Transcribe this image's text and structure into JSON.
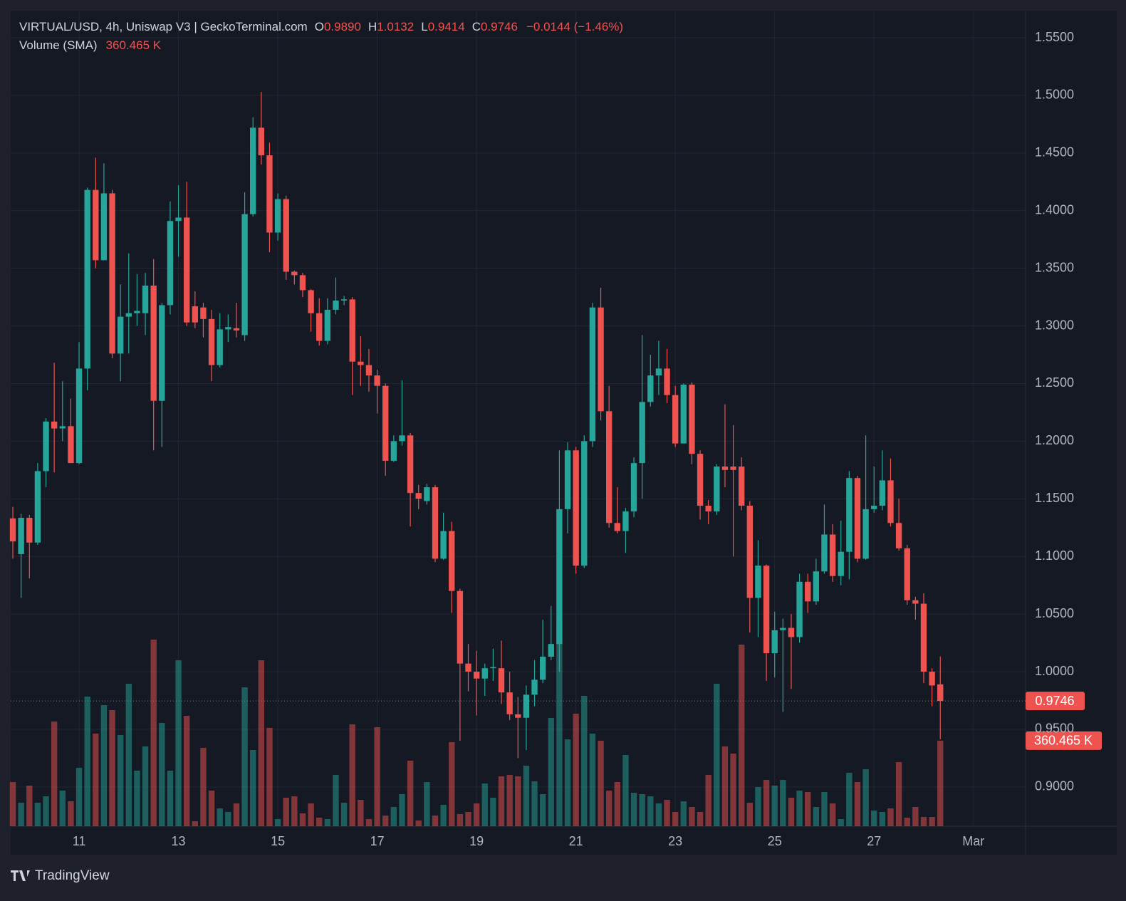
{
  "chart_data": {
    "type": "candlestick",
    "title": "VIRTUAL/USD, 4h, Uniswap V3 | GeckoTerminal.com",
    "ohlc_letters": [
      "O",
      "H",
      "L",
      "C"
    ],
    "ohlc_labels": [
      "0.9890",
      "1.0132",
      "0.9414",
      "0.9746"
    ],
    "change_label": "−0.0144 (−1.46%)",
    "volume_title": "Volume (SMA)",
    "volume_label": "360.465 K",
    "watermark": "TradingView",
    "up_color": "#26a69a",
    "down_color": "#ef5350",
    "open": [
      1.133,
      1.102,
      1.1335,
      1.112,
      1.174,
      1.217,
      1.211,
      1.213,
      1.181,
      1.263,
      1.418,
      1.357,
      1.415,
      1.276,
      1.308,
      1.311,
      1.311,
      1.335,
      1.235,
      1.318,
      1.391,
      1.394,
      1.317,
      1.316,
      1.306,
      1.266,
      1.297,
      1.298,
      1.292,
      1.397,
      1.472,
      1.448,
      1.381,
      1.41,
      1.347,
      1.344,
      1.331,
      1.311,
      1.287,
      1.314,
      1.322,
      1.323,
      1.269,
      1.266,
      1.257,
      1.248,
      1.183,
      1.2,
      1.205,
      1.155,
      1.148,
      1.16,
      1.098,
      1.122,
      1.07,
      1.007,
      1.0,
      0.994,
      1.003,
      1.003,
      0.982,
      0.963,
      0.96,
      0.98,
      0.993,
      1.013,
      1.024,
      1.141,
      1.192,
      1.092,
      1.2,
      1.316,
      1.226,
      1.129,
      1.122,
      1.139,
      1.181,
      1.234,
      1.257,
      1.263,
      1.24,
      1.198,
      1.249,
      1.189,
      1.144,
      1.139,
      1.178,
      1.178,
      1.178,
      1.144,
      1.064,
      1.092,
      1.016,
      1.036,
      1.038,
      1.03,
      1.078,
      1.061,
      1.087,
      1.119,
      1.083,
      1.104,
      1.168,
      1.098,
      1.141,
      1.144,
      1.166,
      1.129,
      1.107,
      1.062,
      1.059,
      1.0,
      0.989
    ],
    "high": [
      1.143,
      1.137,
      1.136,
      1.181,
      1.22,
      1.268,
      1.252,
      1.237,
      1.286,
      1.42,
      1.446,
      1.441,
      1.418,
      1.336,
      1.363,
      1.345,
      1.346,
      1.358,
      1.32,
      1.408,
      1.422,
      1.425,
      1.33,
      1.32,
      1.314,
      1.311,
      1.31,
      1.32,
      1.416,
      1.481,
      1.503,
      1.459,
      1.415,
      1.413,
      1.348,
      1.346,
      1.332,
      1.324,
      1.324,
      1.342,
      1.326,
      1.325,
      1.291,
      1.28,
      1.262,
      1.25,
      1.205,
      1.253,
      1.207,
      1.162,
      1.163,
      1.162,
      1.138,
      1.13,
      1.072,
      1.024,
      1.018,
      1.007,
      1.02,
      1.027,
      1.0,
      0.978,
      0.988,
      1.01,
      1.045,
      1.057,
      1.192,
      1.199,
      1.195,
      1.205,
      1.32,
      1.333,
      1.248,
      1.16,
      1.142,
      1.186,
      1.292,
      1.275,
      1.287,
      1.28,
      1.248,
      1.25,
      1.251,
      1.192,
      1.149,
      1.18,
      1.232,
      1.214,
      1.186,
      1.148,
      1.114,
      1.093,
      1.052,
      1.046,
      1.05,
      1.085,
      1.085,
      1.098,
      1.145,
      1.128,
      1.131,
      1.174,
      1.17,
      1.205,
      1.178,
      1.192,
      1.185,
      1.15,
      1.11,
      1.065,
      1.068,
      1.003,
      1.0132
    ],
    "low": [
      1.098,
      1.064,
      1.081,
      1.11,
      1.16,
      1.173,
      1.2,
      1.181,
      1.18,
      1.244,
      1.35,
      1.357,
      1.272,
      1.252,
      1.276,
      1.3,
      1.292,
      1.192,
      1.195,
      1.31,
      1.36,
      1.3,
      1.298,
      1.29,
      1.252,
      1.264,
      1.286,
      1.29,
      1.287,
      1.395,
      1.44,
      1.364,
      1.374,
      1.34,
      1.336,
      1.325,
      1.295,
      1.283,
      1.284,
      1.31,
      1.318,
      1.24,
      1.248,
      1.243,
      1.224,
      1.17,
      1.182,
      1.196,
      1.126,
      1.141,
      1.145,
      1.095,
      1.097,
      1.051,
      0.94,
      0.983,
      0.962,
      0.979,
      0.992,
      0.972,
      0.958,
      0.925,
      0.932,
      0.97,
      0.99,
      1.01,
      1.0,
      1.12,
      1.085,
      1.09,
      1.195,
      1.218,
      1.125,
      1.12,
      1.103,
      1.134,
      1.15,
      1.23,
      1.24,
      1.233,
      1.195,
      1.198,
      1.18,
      1.132,
      1.128,
      1.136,
      1.16,
      1.1,
      1.14,
      1.034,
      1.03,
      0.992,
      0.995,
      0.965,
      0.985,
      1.025,
      1.051,
      1.058,
      1.085,
      1.078,
      1.075,
      1.08,
      1.095,
      1.097,
      1.138,
      1.14,
      1.126,
      1.105,
      1.058,
      1.045,
      0.99,
      0.97,
      0.9414
    ],
    "close": [
      1.113,
      1.1335,
      1.112,
      1.174,
      1.217,
      1.211,
      1.213,
      1.181,
      1.263,
      1.418,
      1.357,
      1.415,
      1.276,
      1.308,
      1.311,
      1.313,
      1.335,
      1.235,
      1.318,
      1.391,
      1.394,
      1.303,
      1.303,
      1.306,
      1.266,
      1.297,
      1.299,
      1.296,
      1.397,
      1.472,
      1.448,
      1.381,
      1.41,
      1.347,
      1.344,
      1.331,
      1.311,
      1.287,
      1.314,
      1.322,
      1.323,
      1.269,
      1.266,
      1.257,
      1.248,
      1.183,
      1.2,
      1.205,
      1.155,
      1.15,
      1.16,
      1.098,
      1.122,
      1.07,
      1.007,
      1.0,
      0.994,
      1.003,
      1.004,
      0.982,
      0.963,
      0.96,
      0.98,
      0.993,
      1.013,
      1.024,
      1.141,
      1.192,
      1.092,
      1.2,
      1.316,
      1.226,
      1.129,
      1.122,
      1.139,
      1.181,
      1.234,
      1.257,
      1.263,
      1.24,
      1.198,
      1.249,
      1.189,
      1.144,
      1.139,
      1.178,
      1.175,
      1.175,
      1.144,
      1.064,
      1.092,
      1.016,
      1.036,
      1.038,
      1.03,
      1.078,
      1.061,
      1.087,
      1.119,
      1.083,
      1.104,
      1.168,
      1.098,
      1.141,
      1.144,
      1.166,
      1.129,
      1.107,
      1.062,
      1.059,
      1.0,
      0.988,
      0.9746
    ],
    "volume": [
      186,
      99,
      171,
      99,
      126,
      441,
      150,
      105,
      246,
      546,
      390,
      510,
      489,
      384,
      600,
      234,
      336,
      786,
      435,
      234,
      699,
      465,
      21,
      330,
      150,
      75,
      60,
      96,
      585,
      321,
      699,
      414,
      30,
      120,
      126,
      54,
      96,
      36,
      30,
      216,
      99,
      429,
      111,
      30,
      417,
      45,
      81,
      135,
      276,
      24,
      186,
      45,
      90,
      354,
      51,
      60,
      96,
      180,
      120,
      210,
      216,
      210,
      255,
      189,
      135,
      456,
      858,
      366,
      474,
      549,
      390,
      360,
      150,
      186,
      300,
      141,
      135,
      126,
      96,
      111,
      60,
      105,
      81,
      60,
      216,
      600,
      336,
      306,
      765,
      99,
      165,
      195,
      171,
      195,
      120,
      150,
      144,
      81,
      144,
      96,
      30,
      225,
      186,
      240,
      66,
      60,
      75,
      270,
      36,
      81,
      39,
      39,
      360.465
    ],
    "xlim": [
      -0.26,
      122.3
    ],
    "xticks": [
      {
        "value": 8,
        "label": "11"
      },
      {
        "value": 20,
        "label": "13"
      },
      {
        "value": 32,
        "label": "15"
      },
      {
        "value": 44,
        "label": "17"
      },
      {
        "value": 56,
        "label": "19"
      },
      {
        "value": 68,
        "label": "21"
      },
      {
        "value": 80,
        "label": "23"
      },
      {
        "value": 92,
        "label": "25"
      },
      {
        "value": 104,
        "label": "27"
      },
      {
        "value": 116,
        "label": "Mar"
      }
    ],
    "ylim": [
      0.8659,
      1.5735
    ],
    "yticks": [
      {
        "value": 0.9,
        "label": "0.9000"
      },
      {
        "value": 0.95,
        "label": "0.9500"
      },
      {
        "value": 1.0,
        "label": "1.0000"
      },
      {
        "value": 1.05,
        "label": "1.0500"
      },
      {
        "value": 1.1,
        "label": "1.1000"
      },
      {
        "value": 1.15,
        "label": "1.1500"
      },
      {
        "value": 1.2,
        "label": "1.2000"
      },
      {
        "value": 1.25,
        "label": "1.2500"
      },
      {
        "value": 1.3,
        "label": "1.3000"
      },
      {
        "value": 1.35,
        "label": "1.3500"
      },
      {
        "value": 1.4,
        "label": "1.4000"
      },
      {
        "value": 1.45,
        "label": "1.4500"
      },
      {
        "value": 1.5,
        "label": "1.5000"
      },
      {
        "value": 1.55,
        "label": "1.5500"
      }
    ],
    "y2lim": [
      0,
      3435
    ],
    "grid": true
  }
}
